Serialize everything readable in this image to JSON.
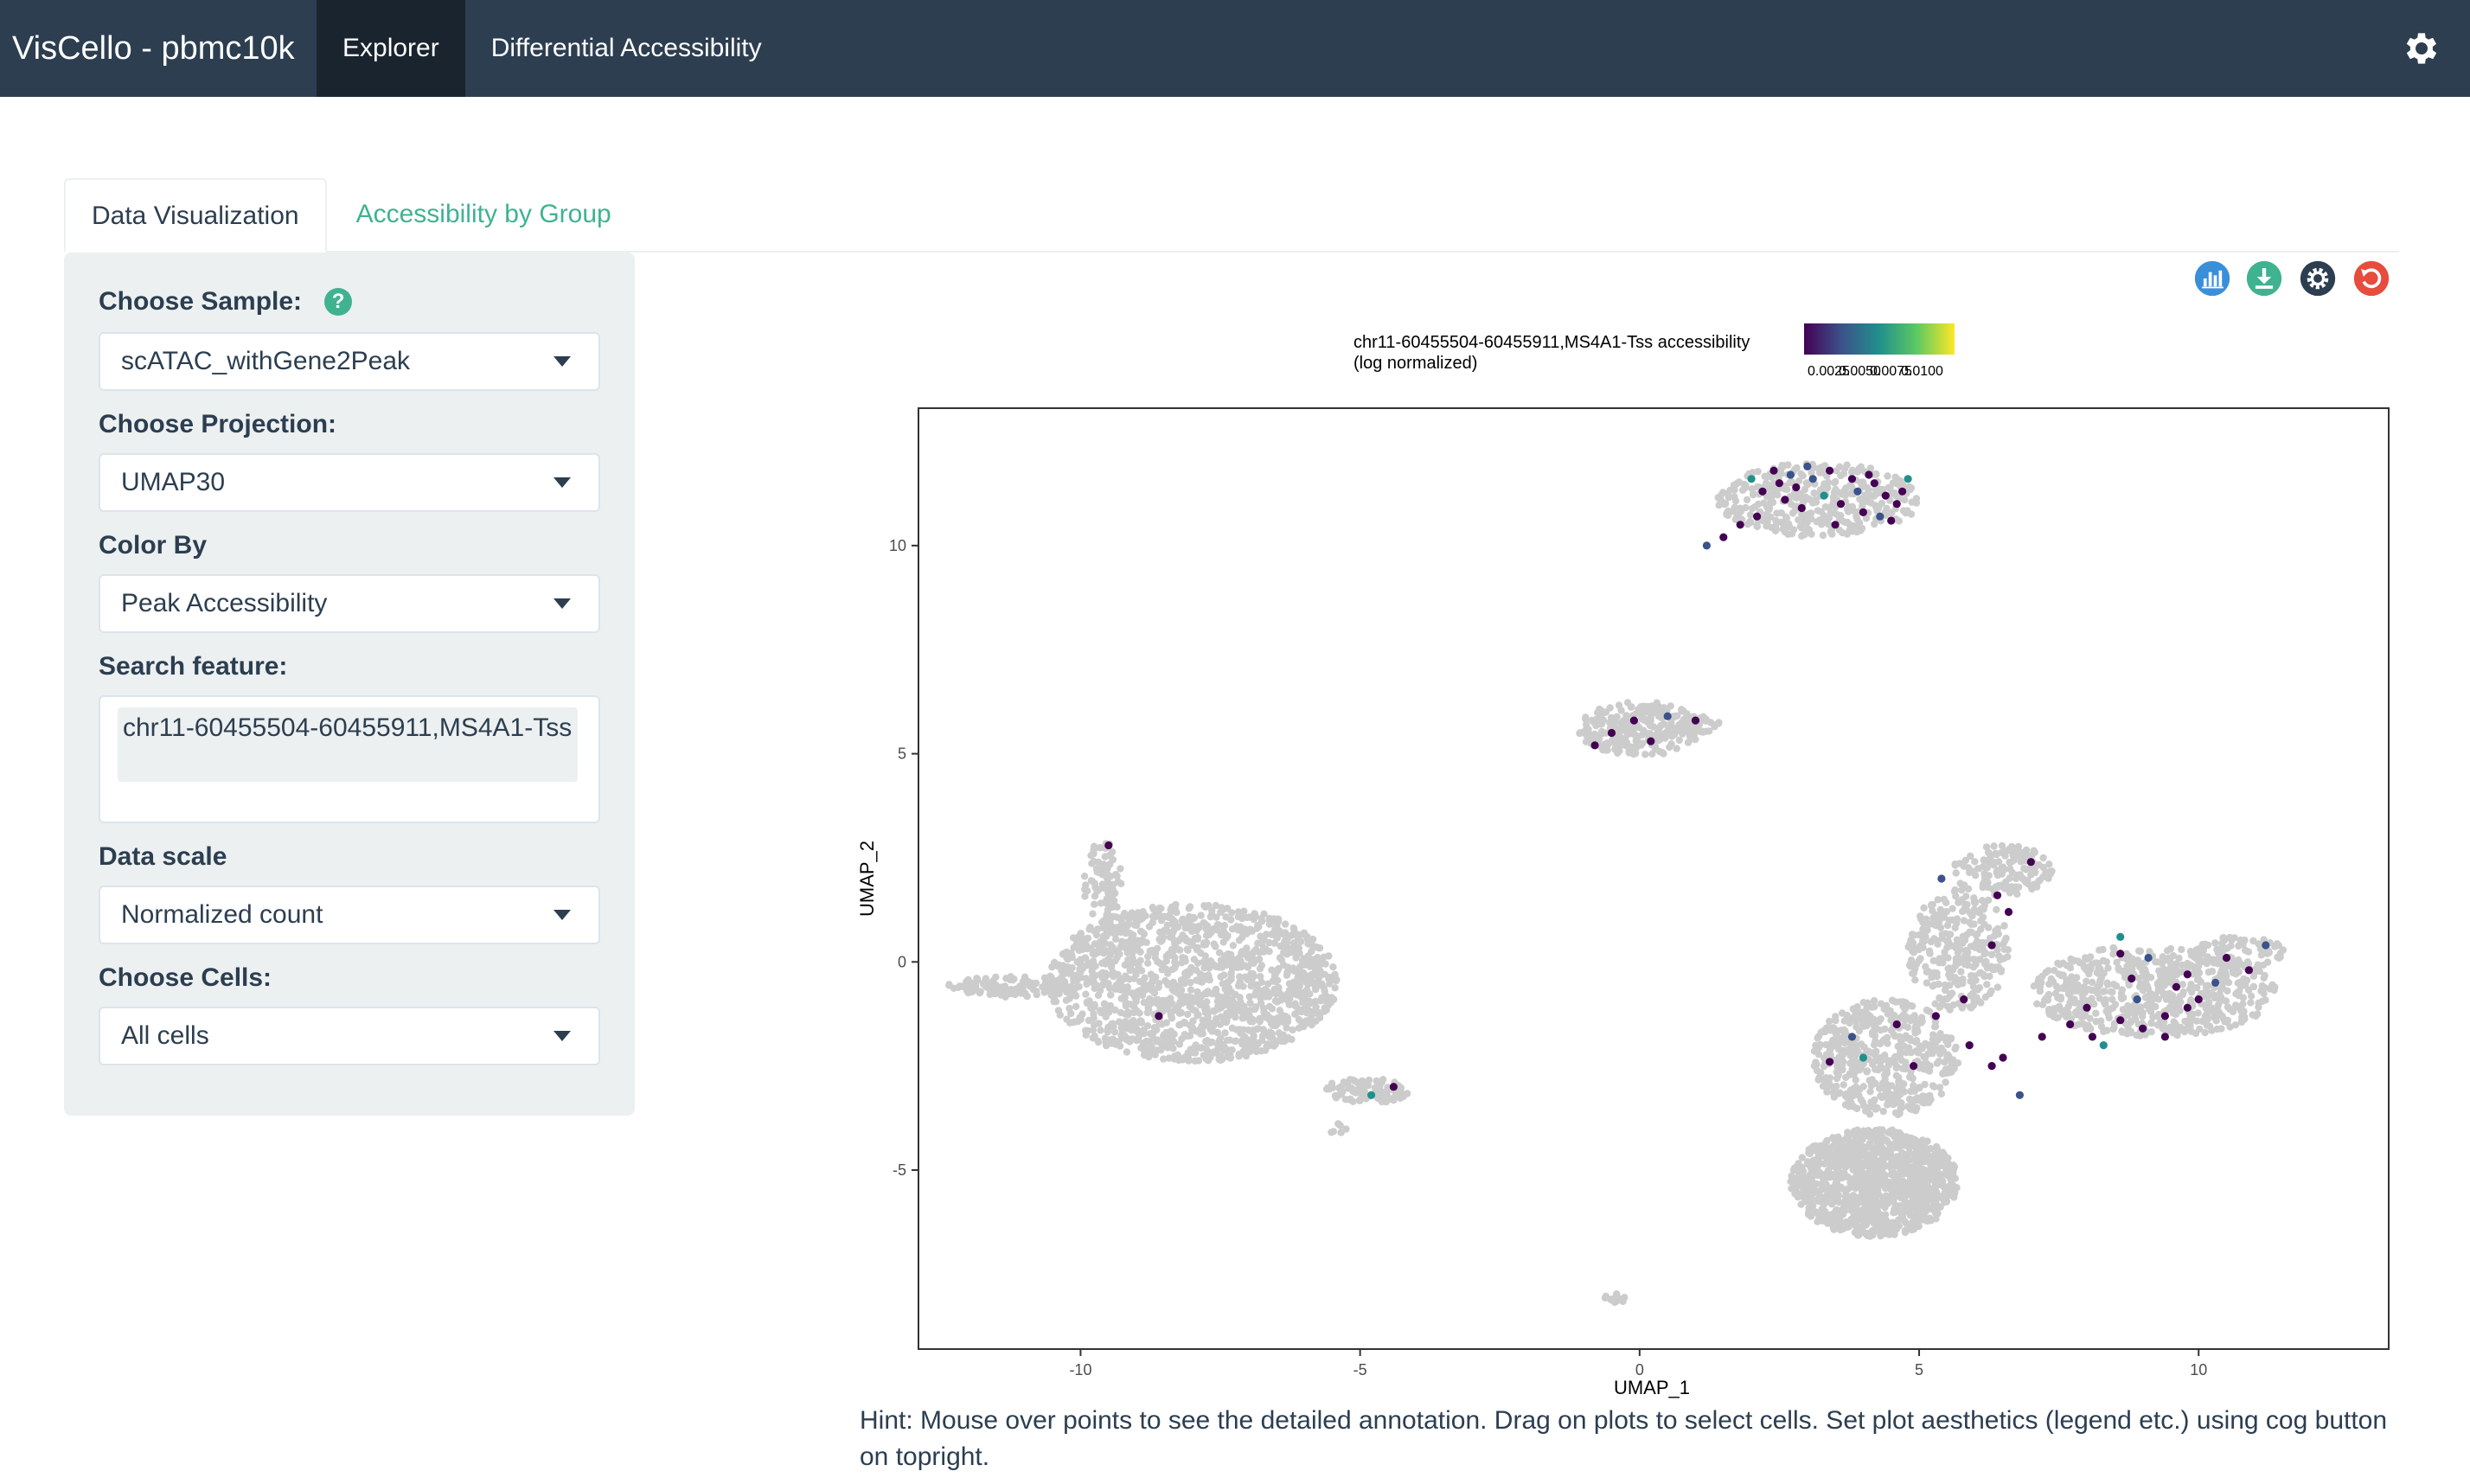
{
  "navbar": {
    "brand": "VisCello - pbmc10k",
    "items": [
      "Explorer",
      "Differential Accessibility"
    ]
  },
  "tabs": [
    "Data Visualization",
    "Accessibility by Group"
  ],
  "sidebar": {
    "sample_label": "Choose Sample:",
    "sample_value": "scATAC_withGene2Peak",
    "projection_label": "Choose Projection:",
    "projection_value": "UMAP30",
    "colorby_label": "Color By",
    "colorby_value": "Peak Accessibility",
    "search_label": "Search feature:",
    "search_value": "chr11-60455504-60455911,MS4A1-Tss",
    "scale_label": "Data scale",
    "scale_value": "Normalized count",
    "cells_label": "Choose Cells:",
    "cells_value": "All cells"
  },
  "icons": {
    "toolbar": [
      "bar-chart-icon",
      "download-icon",
      "settings-icon",
      "reset-icon"
    ],
    "colors": {
      "bar": "#3a8fd9",
      "download": "#3fb38f",
      "settings": "#2c3e50",
      "reset": "#e74c3c",
      "accent": "#3fb38f",
      "navbar": "#2c3e50"
    }
  },
  "chart_data": {
    "type": "scatter",
    "legend_title_line1": "chr11-60455504-60455911,MS4A1-Tss accessibility",
    "legend_title_line2": "(log normalized)",
    "legend_ticks": [
      "0.0025",
      "0.0050",
      "0.0075",
      "0.0100"
    ],
    "legend_colors": [
      "#440154",
      "#3b528b",
      "#21908c",
      "#5dc963",
      "#fde725"
    ],
    "legend_placement": "top",
    "xlabel": "UMAP_1",
    "ylabel": "UMAP_2",
    "x_ticks": [
      -10,
      -5,
      0,
      5,
      10
    ],
    "y_ticks": [
      -5,
      0,
      5,
      10
    ],
    "xlim": [
      -12.9,
      13.4
    ],
    "ylim": [
      -9.3,
      13.3
    ],
    "background_color": "#cccccc",
    "clusters": [
      {
        "cx": -8.0,
        "cy": -0.5,
        "rx": 2.6,
        "ry": 1.9,
        "n": 1400
      },
      {
        "cx": -11.2,
        "cy": -0.6,
        "rx": 1.2,
        "ry": 0.25,
        "n": 120
      },
      {
        "cx": -9.6,
        "cy": 1.9,
        "rx": 0.35,
        "ry": 1.0,
        "n": 80
      },
      {
        "cx": -4.9,
        "cy": -3.1,
        "rx": 0.8,
        "ry": 0.3,
        "n": 90
      },
      {
        "cx": -5.4,
        "cy": -4.0,
        "rx": 0.2,
        "ry": 0.12,
        "n": 6
      },
      {
        "cx": 0.0,
        "cy": 5.6,
        "rx": 1.1,
        "ry": 0.65,
        "n": 250
      },
      {
        "cx": 1.0,
        "cy": 5.7,
        "rx": 0.45,
        "ry": 0.2,
        "n": 30
      },
      {
        "cx": 3.2,
        "cy": 11.1,
        "rx": 1.8,
        "ry": 0.9,
        "n": 380
      },
      {
        "cx": 4.2,
        "cy": -5.3,
        "rx": 1.5,
        "ry": 1.3,
        "n": 1100
      },
      {
        "cx": 4.4,
        "cy": -2.3,
        "rx": 1.3,
        "ry": 1.4,
        "n": 500
      },
      {
        "cx": 5.7,
        "cy": 0.3,
        "rx": 0.9,
        "ry": 1.5,
        "n": 300
      },
      {
        "cx": 6.5,
        "cy": 2.2,
        "rx": 0.9,
        "ry": 0.6,
        "n": 140
      },
      {
        "cx": 9.2,
        "cy": -0.7,
        "rx": 2.2,
        "ry": 1.1,
        "n": 620
      },
      {
        "cx": 10.7,
        "cy": 0.2,
        "rx": 0.9,
        "ry": 0.4,
        "n": 70
      },
      {
        "cx": -0.5,
        "cy": -8.1,
        "rx": 0.25,
        "ry": 0.15,
        "n": 14
      }
    ],
    "highlighted": [
      [
        2.5,
        11.5
      ],
      [
        2.8,
        11.4
      ],
      [
        3.1,
        11.6
      ],
      [
        2.6,
        11.1
      ],
      [
        3.3,
        11.2
      ],
      [
        2.2,
        11.3
      ],
      [
        3.6,
        11.0
      ],
      [
        3.9,
        11.3
      ],
      [
        4.2,
        11.5
      ],
      [
        4.4,
        11.2
      ],
      [
        4.0,
        10.8
      ],
      [
        4.6,
        11.0
      ],
      [
        4.3,
        10.7
      ],
      [
        3.8,
        11.6
      ],
      [
        2.9,
        10.9
      ],
      [
        2.0,
        11.6
      ],
      [
        2.4,
        11.8
      ],
      [
        3.0,
        11.9
      ],
      [
        4.1,
        11.7
      ],
      [
        4.7,
        11.3
      ],
      [
        1.8,
        10.5
      ],
      [
        1.5,
        10.2
      ],
      [
        1.2,
        10.0
      ],
      [
        2.1,
        10.7
      ],
      [
        4.5,
        10.6
      ],
      [
        3.5,
        10.5
      ],
      [
        4.8,
        11.6
      ],
      [
        2.7,
        11.7
      ],
      [
        3.4,
        11.8
      ],
      [
        -0.1,
        5.8
      ],
      [
        -0.5,
        5.5
      ],
      [
        0.2,
        5.3
      ],
      [
        0.5,
        5.9
      ],
      [
        -0.8,
        5.2
      ],
      [
        1.0,
        5.8
      ],
      [
        -9.5,
        2.8
      ],
      [
        -8.6,
        -1.3
      ],
      [
        -4.8,
        -3.2
      ],
      [
        -4.4,
        -3.0
      ],
      [
        7.0,
        2.4
      ],
      [
        6.4,
        1.6
      ],
      [
        6.6,
        1.2
      ],
      [
        5.4,
        2.0
      ],
      [
        6.3,
        0.4
      ],
      [
        5.8,
        -0.9
      ],
      [
        5.3,
        -1.3
      ],
      [
        4.6,
        -1.5
      ],
      [
        3.8,
        -1.8
      ],
      [
        4.0,
        -2.3
      ],
      [
        4.9,
        -2.5
      ],
      [
        3.4,
        -2.4
      ],
      [
        6.5,
        -2.3
      ],
      [
        6.8,
        -3.2
      ],
      [
        7.2,
        -1.8
      ],
      [
        7.7,
        -1.5
      ],
      [
        8.1,
        -1.8
      ],
      [
        8.6,
        -1.4
      ],
      [
        8.9,
        -0.9
      ],
      [
        9.0,
        -1.6
      ],
      [
        8.3,
        -2.0
      ],
      [
        9.4,
        -1.3
      ],
      [
        9.6,
        -0.6
      ],
      [
        9.1,
        0.1
      ],
      [
        8.6,
        0.2
      ],
      [
        8.8,
        -0.4
      ],
      [
        9.8,
        -0.3
      ],
      [
        10.0,
        -0.9
      ],
      [
        10.3,
        -0.5
      ],
      [
        10.5,
        0.1
      ],
      [
        9.4,
        -1.8
      ],
      [
        8.6,
        0.6
      ],
      [
        10.9,
        -0.2
      ],
      [
        11.2,
        0.4
      ],
      [
        6.3,
        -2.5
      ],
      [
        5.9,
        -2.0
      ],
      [
        8.0,
        -1.1
      ],
      [
        9.8,
        -1.1
      ]
    ]
  },
  "hint": "Hint: Mouse over points to see the detailed annotation. Drag on plots to select cells. Set plot aesthetics (legend etc.) using cog button on topright."
}
